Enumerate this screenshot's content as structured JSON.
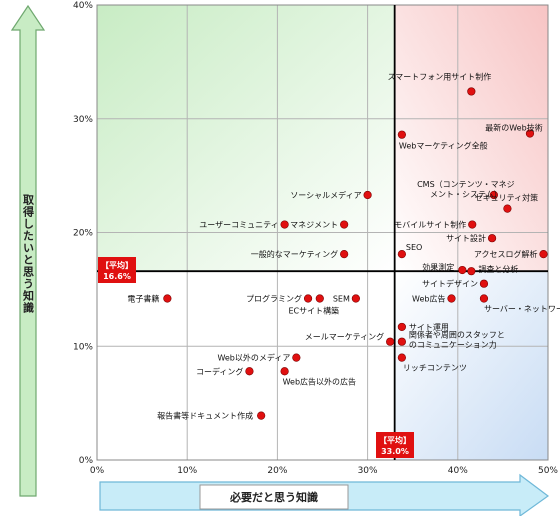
{
  "colors": {
    "quadrant_top_left": "#c8ecc4",
    "quadrant_top_right": "#f7c4c4",
    "quadrant_bottom_right": "#c8dcf4",
    "grid": "#b4b4b4",
    "average_line": "#000000",
    "point": "#e01010",
    "avg_label_bg": "#e01010",
    "arrow_fill": "#c8ecc4",
    "arrow_stroke": "#6fa86f",
    "x_arrow_fill": "#c8ecf8",
    "x_arrow_stroke": "#6fb8d8"
  },
  "chart_data": {
    "type": "scatter",
    "xlabel": "必要だと思う知識",
    "ylabel": "取得したいと思う知識",
    "xlim": [
      0,
      50
    ],
    "ylim": [
      0,
      40
    ],
    "x_ticks": [
      "0%",
      "10%",
      "20%",
      "30%",
      "40%",
      "50%"
    ],
    "y_ticks": [
      "0%",
      "10%",
      "20%",
      "30%",
      "40%"
    ],
    "x_tick_values": [
      0,
      10,
      20,
      30,
      40,
      50
    ],
    "y_tick_values": [
      0,
      10,
      20,
      30,
      40
    ],
    "grid": true,
    "x_average": {
      "value": 33.0,
      "label_top": "【平均】",
      "label_bottom": "33.0%"
    },
    "y_average": {
      "value": 16.6,
      "label_top": "【平均】",
      "label_bottom": "16.6%"
    },
    "points": [
      {
        "label": "スマートフォン用サイト制作",
        "x": 41.5,
        "y": 32.4
      },
      {
        "label": "最新のWeb技術",
        "x": 48.0,
        "y": 28.7
      },
      {
        "label": "Webマーケティング全般",
        "x": 33.8,
        "y": 28.6
      },
      {
        "label": "ソーシャルメディア",
        "x": 30.0,
        "y": 23.3
      },
      {
        "label": "CMS（コンテンツ・マネジメント・システム）",
        "x": 44.0,
        "y": 23.3
      },
      {
        "label": "セキュリティ対策",
        "x": 45.5,
        "y": 22.1
      },
      {
        "label": "ユーザーコミュニティ",
        "x": 20.8,
        "y": 20.7
      },
      {
        "label": "マネジメント",
        "x": 27.4,
        "y": 20.7
      },
      {
        "label": "モバイルサイト制作",
        "x": 41.6,
        "y": 20.7
      },
      {
        "label": "サイト設計",
        "x": 43.8,
        "y": 19.5
      },
      {
        "label": "一般的なマーケティング",
        "x": 27.4,
        "y": 18.1
      },
      {
        "label": "SEO",
        "x": 33.8,
        "y": 18.1
      },
      {
        "label": "アクセスログ解析",
        "x": 49.5,
        "y": 18.1
      },
      {
        "label": "効果測定",
        "x": 40.5,
        "y": 16.7
      },
      {
        "label": "調査と分析",
        "x": 41.5,
        "y": 16.6
      },
      {
        "label": "サイトデザイン",
        "x": 42.9,
        "y": 15.5
      },
      {
        "label": "電子書籍",
        "x": 7.8,
        "y": 14.2
      },
      {
        "label": "プログラミング",
        "x": 23.4,
        "y": 14.2
      },
      {
        "label": "ECサイト構築",
        "x": 24.7,
        "y": 14.2
      },
      {
        "label": "SEM",
        "x": 28.7,
        "y": 14.2
      },
      {
        "label": "Web広告",
        "x": 39.3,
        "y": 14.2
      },
      {
        "label": "サーバー・ネットワーク",
        "x": 42.9,
        "y": 14.2
      },
      {
        "label": "サイト運用",
        "x": 33.8,
        "y": 11.7
      },
      {
        "label": "メールマーケティング",
        "x": 32.5,
        "y": 10.4
      },
      {
        "label": "関係者や周囲のスタッフとのコミュニケーション力",
        "x": 33.8,
        "y": 10.4
      },
      {
        "label": "Web以外のメディア",
        "x": 22.1,
        "y": 9.0
      },
      {
        "label": "リッチコンテンツ",
        "x": 33.8,
        "y": 9.0
      },
      {
        "label": "コーディング",
        "x": 16.9,
        "y": 7.8
      },
      {
        "label": "Web広告以外の広告",
        "x": 20.8,
        "y": 7.8
      },
      {
        "label": "報告書等ドキュメント作成",
        "x": 18.2,
        "y": 3.9
      }
    ]
  }
}
